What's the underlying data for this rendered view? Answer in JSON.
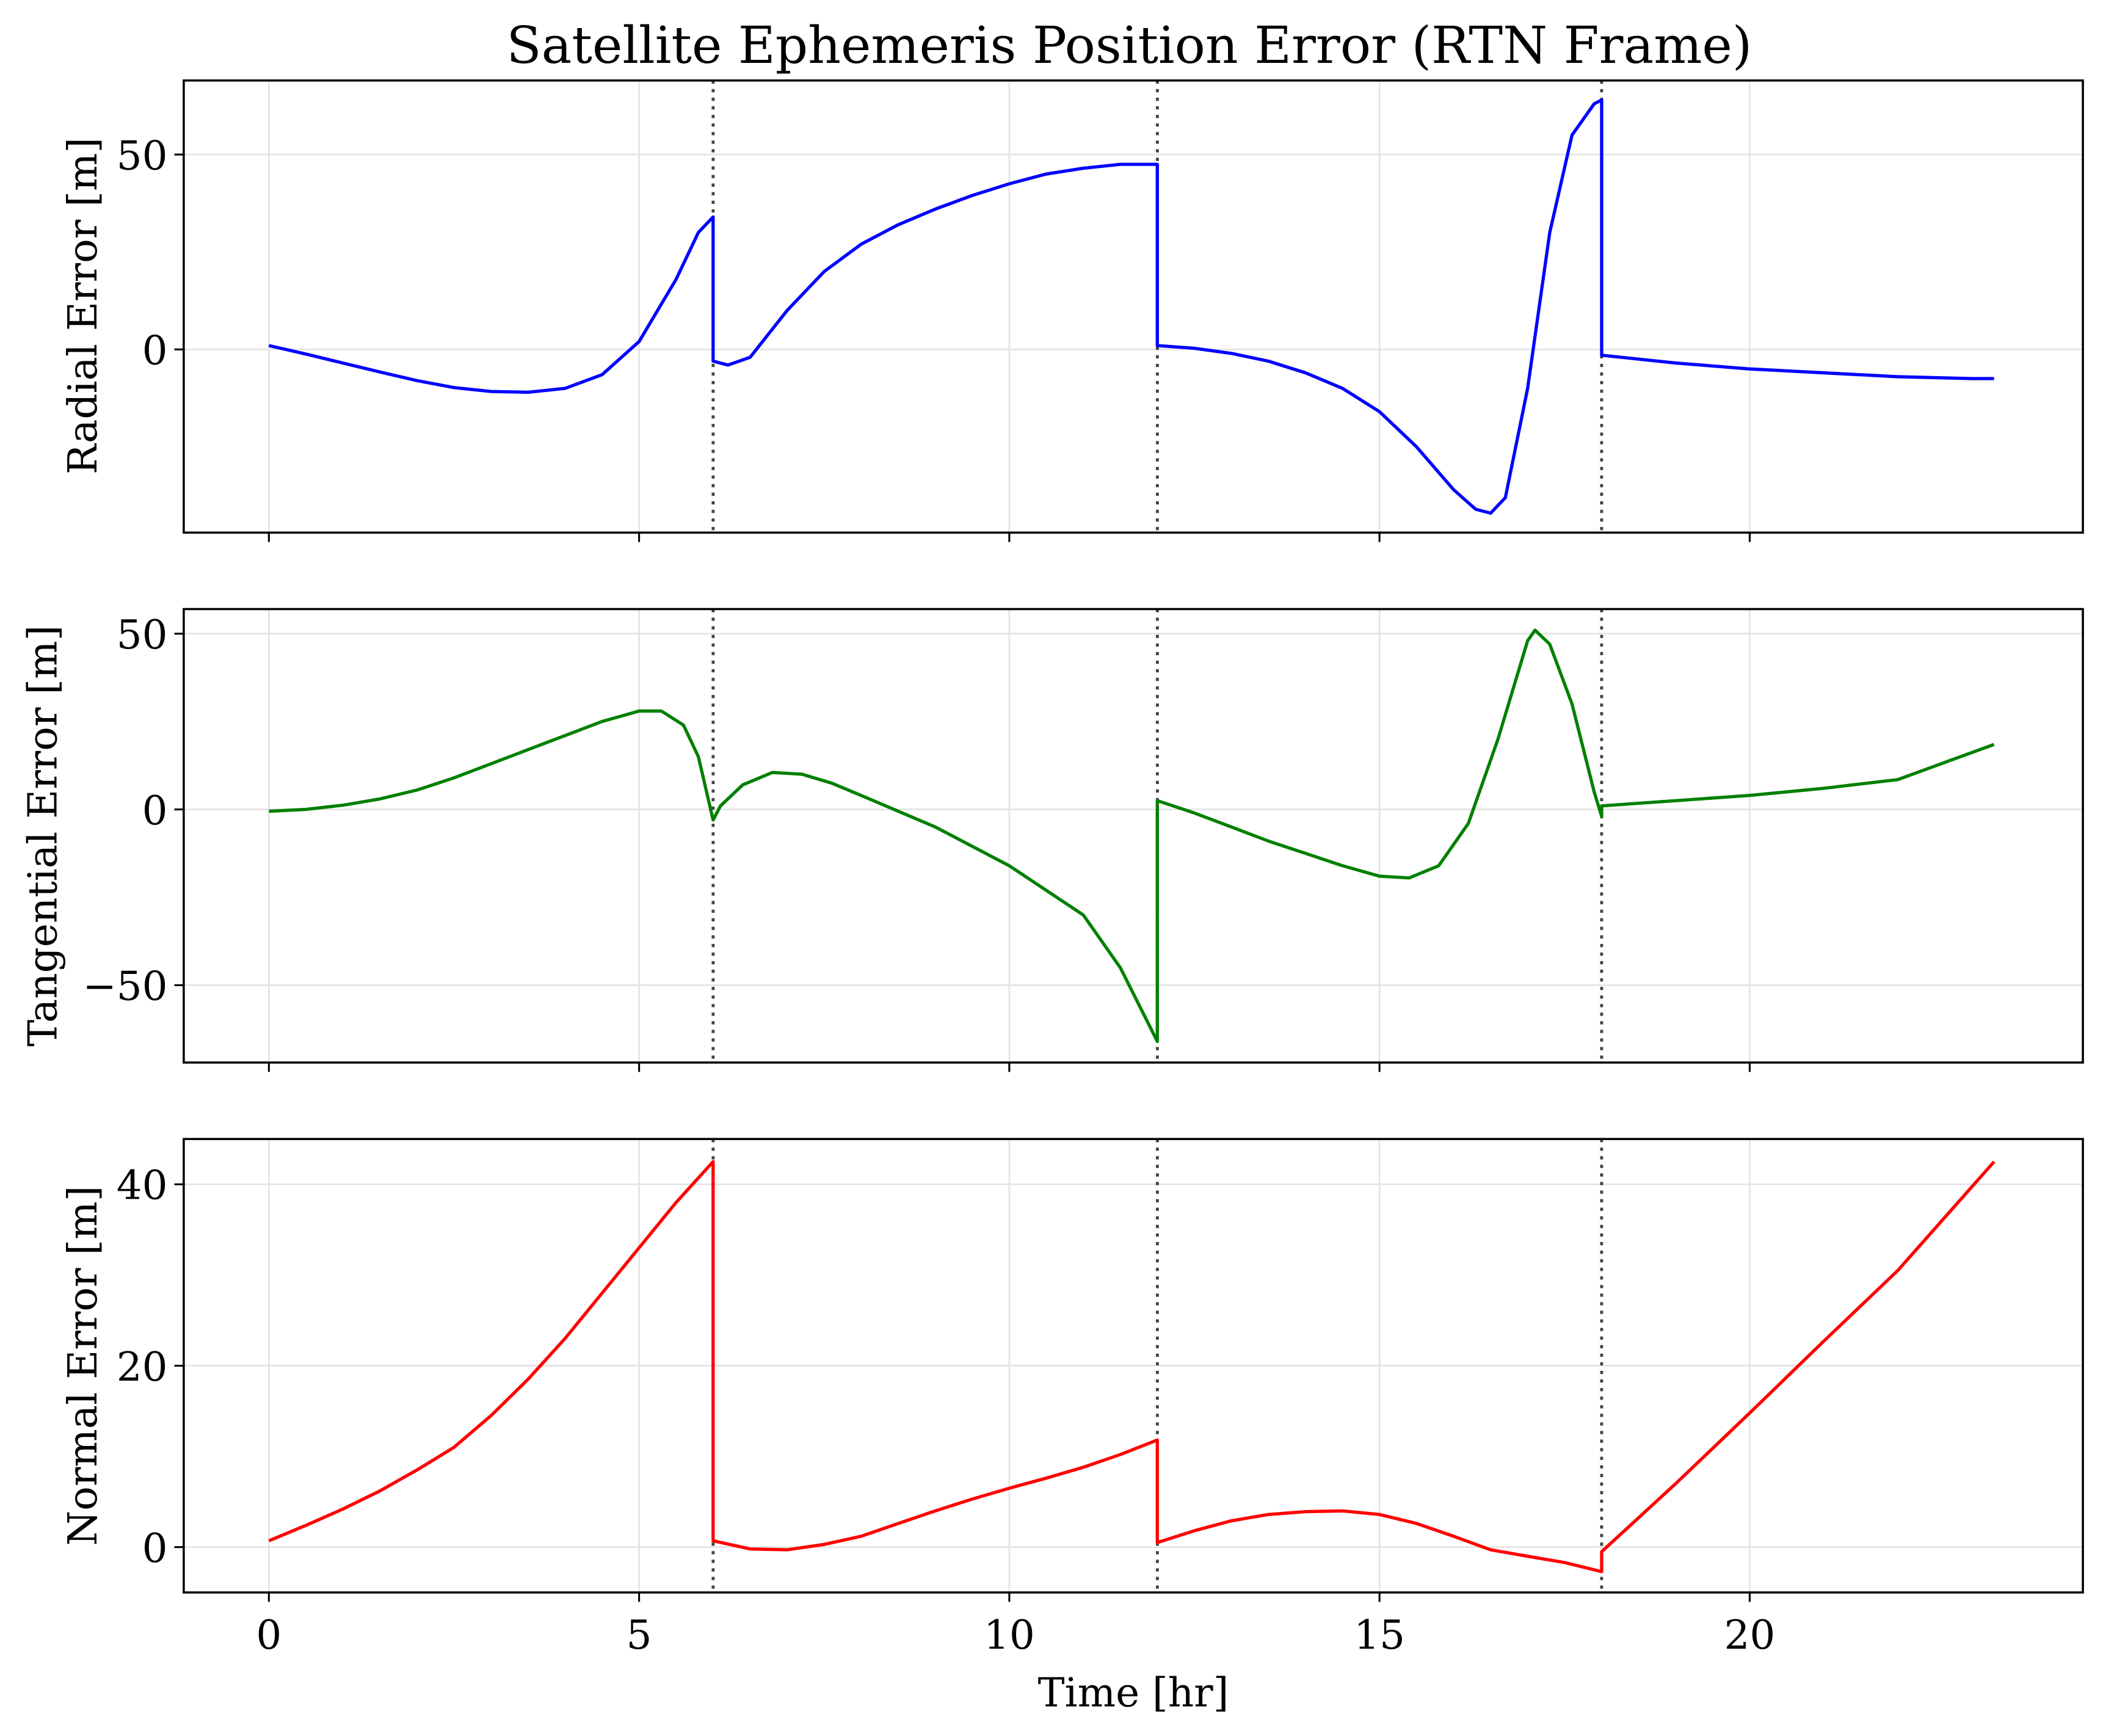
{
  "figure": {
    "title": "Satellite Ephemeris Position Error (RTN Frame)",
    "xlabel": "Time [hr]",
    "x_ticks": [
      0,
      5,
      10,
      15,
      20
    ],
    "x_tick_labels": [
      "0",
      "5",
      "10",
      "15",
      "20"
    ],
    "xlim": [
      -1.15,
      24.5
    ],
    "event_lines_hr": [
      6,
      12,
      18
    ],
    "event_line_style": "dotted",
    "event_line_color": "#444444",
    "grid": true
  },
  "chart_data": [
    {
      "type": "line",
      "panel": "radial",
      "title": "",
      "xlabel": "",
      "ylabel": "Radial Error [m]",
      "color": "#0000ff",
      "ylim": [
        -47,
        69
      ],
      "y_ticks": [
        0,
        50
      ],
      "y_tick_labels": [
        "0",
        "50"
      ],
      "x": [
        0,
        0.5,
        1,
        1.5,
        2,
        2.5,
        3,
        3.5,
        4,
        4.5,
        5,
        5.5,
        5.8,
        6.0,
        6.0,
        6.2,
        6.5,
        7,
        7.5,
        8,
        8.5,
        9,
        9.5,
        10,
        10.5,
        11,
        11.5,
        12.0,
        12.0,
        12.5,
        13,
        13.5,
        14,
        14.5,
        15,
        15.5,
        16,
        16.3,
        16.5,
        16.7,
        17,
        17.3,
        17.6,
        17.9,
        18.0,
        18.0,
        19,
        20,
        21,
        22,
        23,
        23.3
      ],
      "y": [
        1,
        -1.2,
        -3.5,
        -5.8,
        -8,
        -9.8,
        -10.8,
        -11,
        -10,
        -6.5,
        2,
        18,
        30,
        34,
        -3,
        -4,
        -2,
        10,
        20,
        27,
        32,
        36,
        39.5,
        42.5,
        45,
        46.5,
        47.5,
        47.5,
        1,
        0.3,
        -1,
        -3,
        -6,
        -10,
        -16,
        -25,
        -36,
        -41,
        -42,
        -38,
        -10,
        30,
        55,
        63,
        64,
        -1.5,
        -3.5,
        -5,
        -6,
        -7,
        -7.5,
        -7.5
      ]
    },
    {
      "type": "line",
      "panel": "tangential",
      "title": "",
      "xlabel": "",
      "ylabel": "Tangential Error [m]",
      "color": "#008000",
      "ylim": [
        -72,
        57
      ],
      "y_ticks": [
        -50,
        0,
        50
      ],
      "y_tick_labels": [
        "−50",
        "0",
        "50"
      ],
      "x": [
        0,
        0.5,
        1,
        1.5,
        2,
        2.5,
        3,
        3.5,
        4,
        4.5,
        5,
        5.3,
        5.6,
        5.8,
        6.0,
        6.1,
        6.4,
        6.8,
        7.2,
        7.6,
        8,
        9,
        10,
        11,
        11.5,
        12.0,
        12.0,
        12.5,
        13,
        13.5,
        14,
        14.5,
        15,
        15.4,
        15.8,
        16.2,
        16.6,
        17.0,
        17.1,
        17.3,
        17.6,
        17.9,
        18.0,
        18.0,
        19,
        20,
        21,
        22,
        23.3
      ],
      "y": [
        -0.5,
        0,
        1.2,
        3,
        5.5,
        9,
        13,
        17,
        21,
        25,
        28,
        28,
        24,
        15,
        -3,
        1,
        7,
        10.5,
        10,
        7.5,
        4,
        -5,
        -16,
        -30,
        -45,
        -66,
        2.5,
        -1,
        -5,
        -9,
        -12.5,
        -16,
        -19,
        -19.5,
        -16,
        -4,
        20,
        48,
        51,
        47,
        30,
        5,
        -2,
        1,
        2.5,
        4,
        6,
        8.5,
        18.5
      ]
    },
    {
      "type": "line",
      "panel": "normal",
      "title": "",
      "xlabel": "Time [hr]",
      "ylabel": "Normal Error [m]",
      "color": "#ff0000",
      "ylim": [
        -5,
        45
      ],
      "y_ticks": [
        0,
        20,
        40
      ],
      "y_tick_labels": [
        "0",
        "20",
        "40"
      ],
      "x": [
        0,
        0.5,
        1,
        1.5,
        2,
        2.5,
        3,
        3.5,
        4,
        4.5,
        5,
        5.5,
        6.0,
        6.0,
        6.5,
        7,
        7.5,
        8,
        8.5,
        9,
        9.5,
        10,
        10.5,
        11,
        11.5,
        12.0,
        12.0,
        12.5,
        13,
        13.5,
        14,
        14.5,
        15,
        15.5,
        16,
        16.5,
        17,
        17.5,
        18.0,
        18.0,
        19,
        20,
        21,
        22,
        23.3
      ],
      "y": [
        0.7,
        2.4,
        4.2,
        6.2,
        8.5,
        11,
        14.5,
        18.5,
        23,
        28,
        33,
        38,
        42.5,
        0.7,
        -0.2,
        -0.3,
        0.3,
        1.2,
        2.6,
        4,
        5.3,
        6.5,
        7.6,
        8.8,
        10.2,
        11.8,
        0.5,
        1.8,
        2.9,
        3.6,
        3.9,
        4,
        3.6,
        2.6,
        1.2,
        -0.3,
        -1,
        -1.7,
        -2.7,
        -0.5,
        7,
        14.8,
        22.7,
        30.5,
        42.5
      ]
    }
  ]
}
